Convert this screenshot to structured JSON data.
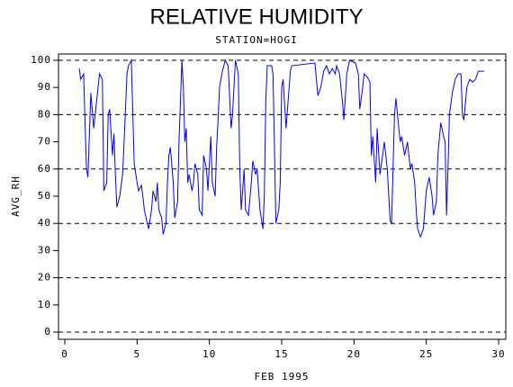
{
  "chart_data": {
    "type": "line",
    "title": "RELATIVE HUMIDITY",
    "subtitle": "STATION=HOGI",
    "y_label": "AVG_RH",
    "x_label": "FEB 1995",
    "xlim": [
      0,
      30
    ],
    "xticks": [
      0,
      5,
      10,
      15,
      20,
      25,
      30
    ],
    "ylim": [
      0,
      100
    ],
    "yticks": [
      0,
      10,
      20,
      30,
      40,
      50,
      60,
      70,
      80,
      90,
      100
    ],
    "ygrid": [
      0,
      20,
      40,
      60,
      80,
      100
    ],
    "x": [
      1.0,
      1.1,
      1.3,
      1.5,
      1.6,
      1.8,
      2.0,
      2.1,
      2.3,
      2.4,
      2.6,
      2.7,
      2.9,
      3.0,
      3.1,
      3.3,
      3.4,
      3.5,
      3.6,
      3.8,
      4.0,
      4.1,
      4.2,
      4.3,
      4.4,
      4.6,
      4.8,
      5.0,
      5.1,
      5.3,
      5.4,
      5.5,
      5.7,
      5.8,
      6.0,
      6.1,
      6.3,
      6.4,
      6.5,
      6.7,
      6.8,
      7.0,
      7.1,
      7.2,
      7.3,
      7.5,
      7.6,
      7.8,
      7.9,
      8.0,
      8.1,
      8.2,
      8.3,
      8.4,
      8.5,
      8.6,
      8.8,
      8.9,
      9.0,
      9.2,
      9.3,
      9.5,
      9.6,
      9.8,
      9.9,
      10.0,
      10.1,
      10.2,
      10.4,
      10.5,
      10.6,
      10.7,
      10.9,
      11.1,
      11.3,
      11.5,
      11.6,
      11.8,
      12.0,
      12.1,
      12.2,
      12.3,
      12.4,
      12.5,
      12.7,
      12.9,
      13.0,
      13.2,
      13.3,
      13.5,
      13.7,
      13.8,
      13.9,
      14.0,
      14.3,
      14.4,
      14.6,
      14.8,
      14.9,
      15.0,
      15.1,
      15.3,
      15.4,
      15.6,
      15.7,
      17.3,
      17.5,
      17.7,
      17.9,
      18.1,
      18.3,
      18.5,
      18.7,
      18.8,
      19.0,
      19.2,
      19.3,
      19.5,
      19.7,
      20.1,
      20.3,
      20.4,
      20.6,
      20.7,
      20.9,
      21.1,
      21.2,
      21.3,
      21.5,
      21.6,
      21.8,
      21.9,
      22.1,
      22.3,
      22.5,
      22.6,
      22.7,
      22.8,
      22.9,
      23.1,
      23.2,
      23.3,
      23.5,
      23.7,
      23.9,
      24.0,
      24.2,
      24.3,
      24.4,
      24.6,
      24.8,
      25.0,
      25.2,
      25.4,
      25.5,
      25.7,
      25.8,
      26.0,
      26.2,
      26.3,
      26.4,
      26.5,
      26.6,
      26.8,
      27.0,
      27.2,
      27.4,
      27.5,
      27.6,
      27.8,
      28.0,
      28.2,
      28.4,
      28.6,
      29.0
    ],
    "series": [
      {
        "color": "#0000ff",
        "values": [
          97,
          93,
          95,
          60,
          57,
          88,
          75,
          80,
          90,
          95,
          93,
          52,
          55,
          80,
          82,
          65,
          73,
          58,
          46,
          50,
          58,
          70,
          82,
          95,
          98,
          100,
          62,
          55,
          52,
          54,
          50,
          45,
          40,
          38,
          45,
          52,
          48,
          55,
          45,
          42,
          36,
          40,
          55,
          65,
          68,
          55,
          42,
          48,
          70,
          85,
          100,
          90,
          70,
          75,
          55,
          58,
          52,
          55,
          62,
          58,
          45,
          43,
          65,
          60,
          52,
          62,
          72,
          55,
          50,
          68,
          78,
          90,
          96,
          100,
          98,
          75,
          80,
          100,
          95,
          60,
          45,
          52,
          60,
          45,
          43,
          55,
          63,
          58,
          60,
          45,
          38,
          50,
          85,
          98,
          98,
          95,
          40,
          45,
          55,
          90,
          93,
          75,
          82,
          96,
          98,
          99,
          87,
          90,
          96,
          98,
          95,
          97,
          95,
          98,
          95,
          85,
          78,
          95,
          100,
          99,
          95,
          82,
          90,
          95,
          94,
          92,
          65,
          72,
          55,
          75,
          58,
          62,
          70,
          60,
          41,
          40,
          60,
          80,
          86,
          75,
          70,
          72,
          65,
          70,
          60,
          62,
          55,
          45,
          38,
          35,
          38,
          52,
          57,
          50,
          43,
          48,
          65,
          77,
          72,
          70,
          43,
          60,
          80,
          88,
          93,
          95,
          95,
          80,
          78,
          90,
          93,
          92,
          93,
          96,
          96
        ]
      }
    ]
  }
}
